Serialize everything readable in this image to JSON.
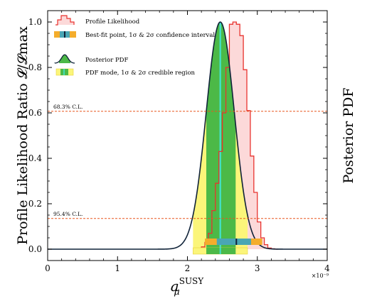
{
  "chart_data": {
    "type": "line",
    "xlabel_main": "a",
    "xlabel_sub": "μ",
    "xlabel_sup": "SUSY",
    "ylabel_left": "Profile Likelihood Ratio 𝓛/𝓛max",
    "ylabel_right": "Posterior PDF",
    "x_scale_label": "×10⁻⁹",
    "xlim": [
      0,
      4
    ],
    "ylim": [
      -0.05,
      1.05
    ],
    "x_ticks": [
      {
        "v": 0,
        "label": "0"
      },
      {
        "v": 1,
        "label": "1"
      },
      {
        "v": 2,
        "label": "2"
      },
      {
        "v": 3,
        "label": "3"
      },
      {
        "v": 4,
        "label": "4"
      }
    ],
    "y_ticks": [
      {
        "v": 0.0,
        "label": "0.0"
      },
      {
        "v": 0.2,
        "label": "0.2"
      },
      {
        "v": 0.4,
        "label": "0.4"
      },
      {
        "v": 0.6,
        "label": "0.6"
      },
      {
        "v": 0.8,
        "label": "0.8"
      },
      {
        "v": 1.0,
        "label": "1.0"
      }
    ],
    "profile_likelihood": {
      "name": "Profile Likelihood",
      "color": "#e8332f",
      "fill": "#fcd9d9",
      "bin_edges": [
        2.2,
        2.25,
        2.3,
        2.35,
        2.4,
        2.45,
        2.5,
        2.55,
        2.6,
        2.65,
        2.7,
        2.75,
        2.8,
        2.85,
        2.9,
        2.95,
        3.0,
        3.05,
        3.1,
        3.15,
        3.2,
        3.25,
        3.3
      ],
      "values": [
        0.01,
        0.03,
        0.07,
        0.17,
        0.29,
        0.43,
        0.6,
        0.8,
        0.99,
        1.0,
        0.99,
        0.94,
        0.79,
        0.61,
        0.41,
        0.25,
        0.12,
        0.05,
        0.02,
        0.005,
        0.002,
        0.0
      ]
    },
    "posterior_pdf": {
      "name": "Posterior PDF",
      "color": "#0f2238",
      "mean": 2.47,
      "sigma": 0.2,
      "peak": 1.0,
      "mode": 2.47,
      "sigma1": [
        2.27,
        2.69
      ],
      "sigma2": [
        2.08,
        2.86
      ]
    },
    "confidence_interval": {
      "best_fit": 2.7,
      "sigma1": [
        2.42,
        2.91
      ],
      "sigma2": [
        2.25,
        3.07
      ]
    },
    "cl_lines": [
      {
        "label": "68.3% C.L.",
        "y": 0.607
      },
      {
        "label": "95.4% C.L.",
        "y": 0.135
      }
    ],
    "legend": [
      {
        "label": "Profile Likelihood",
        "kind": "profile"
      },
      {
        "label": "Best-fit point, 1σ & 2σ confidence interval",
        "kind": "ci"
      },
      {
        "label": "Posterior PDF",
        "kind": "posterior"
      },
      {
        "label": "PDF mode, 1σ & 2σ credible region",
        "kind": "cr"
      }
    ],
    "colors": {
      "ci_outer": "#f4ad2c",
      "ci_inner": "#4aa6b4",
      "ci_point": "#0f2238",
      "cr_outer": "#fbf57a",
      "cr_inner": "#4cb947",
      "cr_mode": "#42e3d0",
      "cl_line": "#e8561f"
    }
  }
}
